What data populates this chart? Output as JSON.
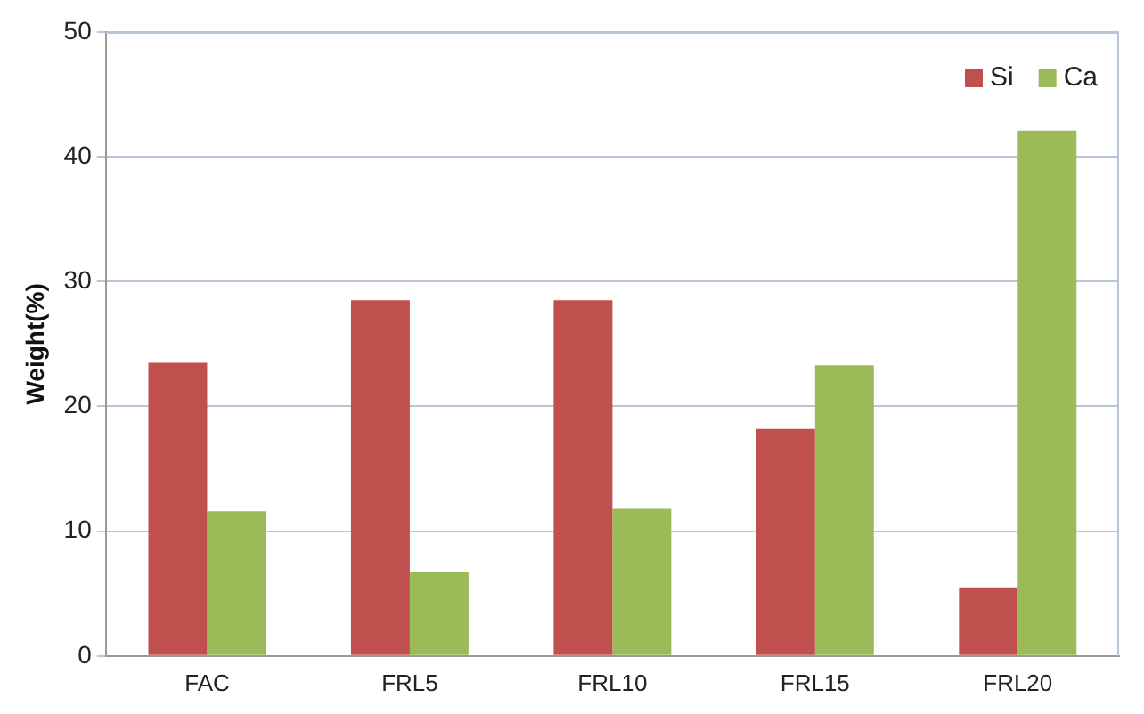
{
  "chart_data": {
    "type": "bar",
    "ylabel": "Weight(%)",
    "categories": [
      "FAC",
      "FRL5",
      "FRL10",
      "FRL15",
      "FRL20"
    ],
    "series": [
      {
        "name": "Si",
        "color": "#c0504d",
        "values": [
          23.5,
          28.5,
          28.5,
          18.2,
          5.5
        ]
      },
      {
        "name": "Ca",
        "color": "#9bbb59",
        "values": [
          11.6,
          6.7,
          11.8,
          23.3,
          42.1
        ]
      }
    ],
    "ylim": [
      0,
      50
    ],
    "yticks": [
      0,
      10,
      20,
      30,
      40,
      50
    ],
    "grid": "y",
    "legend": "top right"
  }
}
